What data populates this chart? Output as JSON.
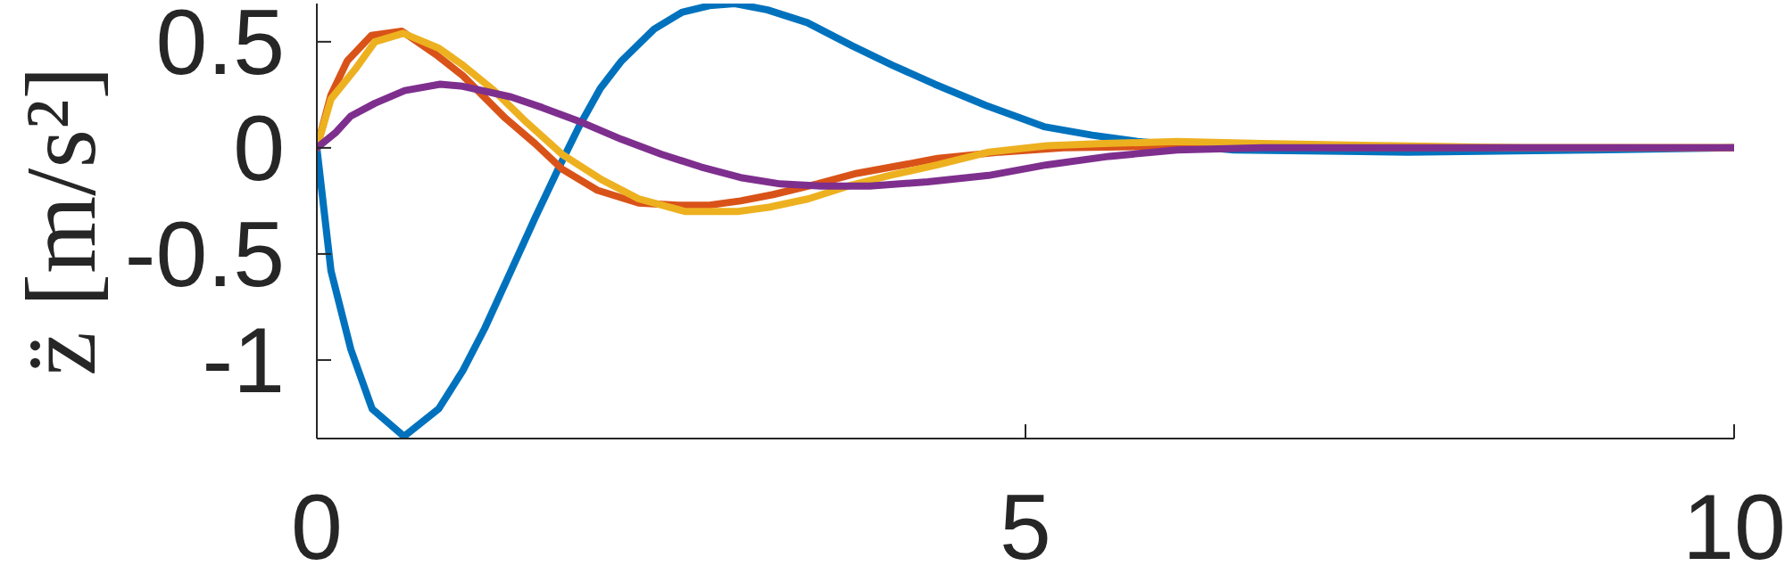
{
  "chart_data": {
    "type": "line",
    "ylabel": "z̈ [m/s²]",
    "xlim": [
      0,
      10
    ],
    "xticks": [
      0,
      5,
      10
    ],
    "ylim": [
      -1.37,
      0.68
    ],
    "yticks": [
      -1,
      -0.5,
      0,
      0.5
    ],
    "line_style": "solid",
    "series": [
      {
        "color": "#0072bd",
        "x": [
          0,
          0.1,
          0.24,
          0.39,
          0.615,
          0.86,
          1.03,
          1.185,
          1.37,
          1.54,
          1.71,
          1.85,
          2.0,
          2.15,
          2.38,
          2.58,
          2.77,
          2.95,
          3.18,
          3.46,
          3.78,
          4.06,
          4.36,
          4.72,
          5.13,
          5.47,
          5.79,
          6.47,
          7.7,
          9,
          10
        ],
        "values": [
          0,
          -0.58,
          -0.95,
          -1.23,
          -1.36,
          -1.23,
          -1.05,
          -0.85,
          -0.58,
          -0.33,
          -0.09,
          0.1,
          0.28,
          0.41,
          0.56,
          0.64,
          0.67,
          0.68,
          0.65,
          0.59,
          0.48,
          0.39,
          0.3,
          0.2,
          0.1,
          0.06,
          0.03,
          -0.01,
          -0.02,
          -0.01,
          0
        ]
      },
      {
        "color": "#d95319",
        "x": [
          0,
          0.1,
          0.215,
          0.385,
          0.6,
          0.84,
          1.03,
          1.33,
          1.54,
          1.73,
          1.98,
          2.27,
          2.55,
          2.77,
          2.99,
          3.22,
          3.53,
          3.81,
          4.06,
          4.38,
          4.82,
          5.27,
          6.2,
          7.5,
          10
        ],
        "values": [
          0,
          0.25,
          0.41,
          0.53,
          0.55,
          0.44,
          0.34,
          0.14,
          0.02,
          -0.1,
          -0.2,
          -0.26,
          -0.27,
          -0.27,
          -0.25,
          -0.22,
          -0.17,
          -0.12,
          -0.09,
          -0.05,
          -0.02,
          0,
          0.01,
          0,
          0
        ]
      },
      {
        "color": "#edb120",
        "x": [
          0,
          0.1,
          0.27,
          0.41,
          0.61,
          0.86,
          1.03,
          1.25,
          1.48,
          1.73,
          2.01,
          2.27,
          2.6,
          2.77,
          2.97,
          3.19,
          3.47,
          3.75,
          4.04,
          4.38,
          4.74,
          5.15,
          5.55,
          6.07,
          6.67,
          7.6,
          8.5,
          10
        ],
        "values": [
          0,
          0.23,
          0.37,
          0.5,
          0.54,
          0.47,
          0.39,
          0.27,
          0.12,
          -0.03,
          -0.15,
          -0.24,
          -0.3,
          -0.3,
          -0.3,
          -0.28,
          -0.24,
          -0.18,
          -0.13,
          -0.08,
          -0.02,
          0.01,
          0.02,
          0.03,
          0.02,
          0.01,
          0,
          0
        ]
      },
      {
        "color": "#7e2f8e",
        "x": [
          0,
          0.13,
          0.24,
          0.41,
          0.62,
          0.87,
          1.03,
          1.37,
          1.59,
          1.87,
          2.15,
          2.43,
          2.71,
          2.99,
          3.27,
          3.56,
          3.9,
          4.31,
          4.74,
          5.15,
          5.59,
          6.07,
          6.67,
          8,
          10
        ],
        "values": [
          0,
          0.07,
          0.15,
          0.21,
          0.27,
          0.3,
          0.29,
          0.24,
          0.19,
          0.12,
          0.04,
          -0.03,
          -0.09,
          -0.14,
          -0.17,
          -0.18,
          -0.18,
          -0.16,
          -0.13,
          -0.08,
          -0.04,
          -0.01,
          0,
          0,
          0
        ]
      }
    ]
  }
}
